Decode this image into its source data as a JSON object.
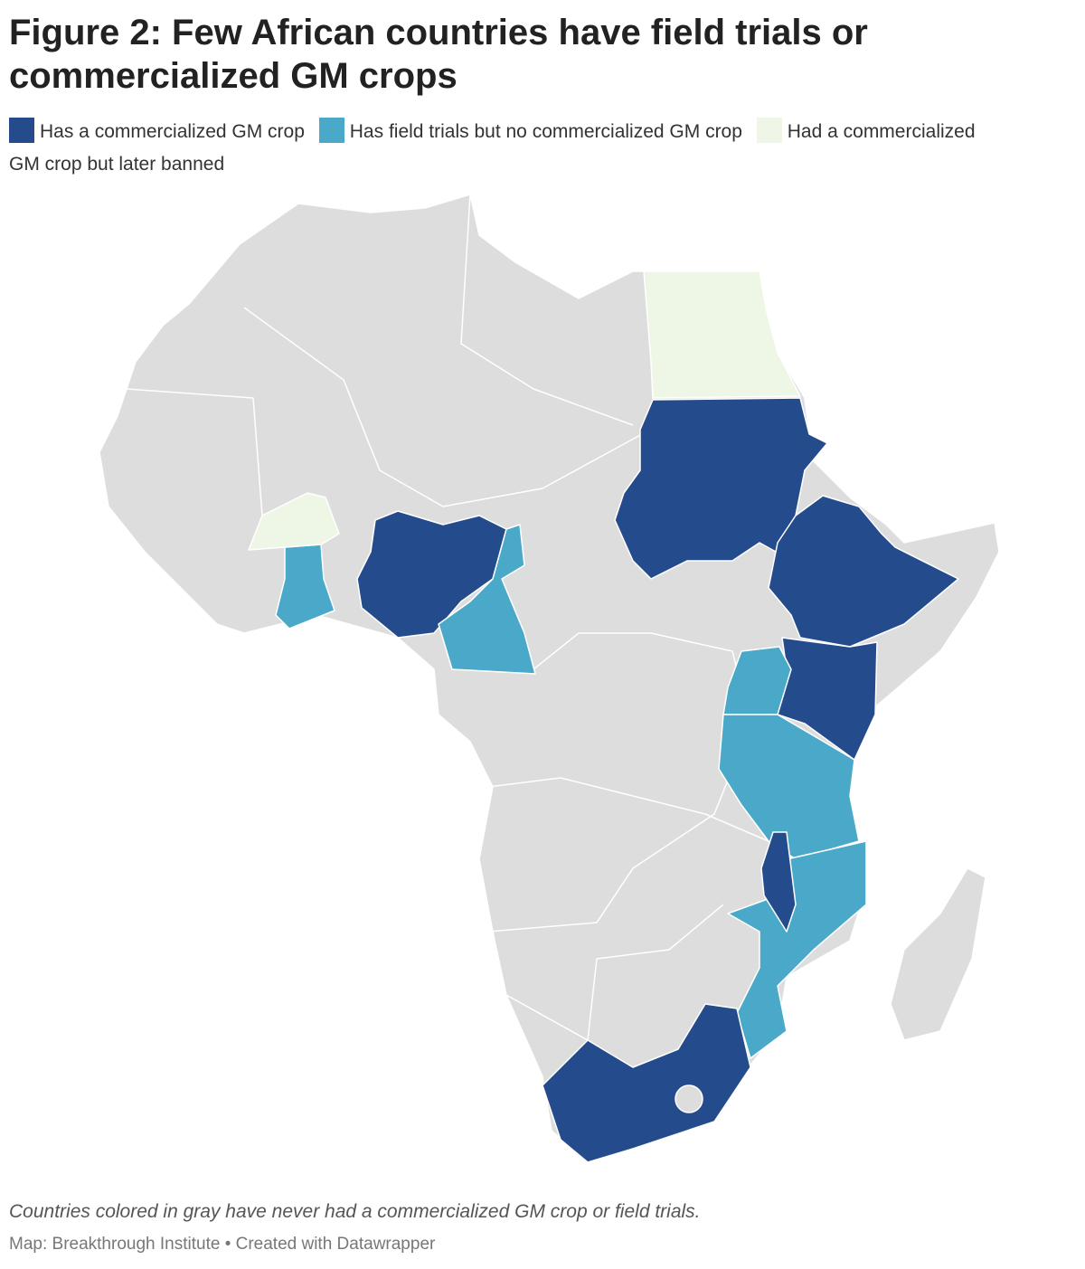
{
  "header": {
    "title": "Figure 2: Few African countries have field trials or commercialized GM crops"
  },
  "legend": [
    {
      "label": "Has a commercialized GM crop",
      "color": "#244b8c"
    },
    {
      "label": "Has field trials but no commercialized GM crop",
      "color": "#4aa8c9"
    },
    {
      "label": "Had a commercialized GM crop but later banned",
      "color": "#eef7e6"
    }
  ],
  "base_color": "#dddddd",
  "footer": {
    "note": "Countries colored in gray have never had a commercialized GM crop or field trials.",
    "source": "Map: Breakthrough Institute • Created with Datawrapper"
  }
}
